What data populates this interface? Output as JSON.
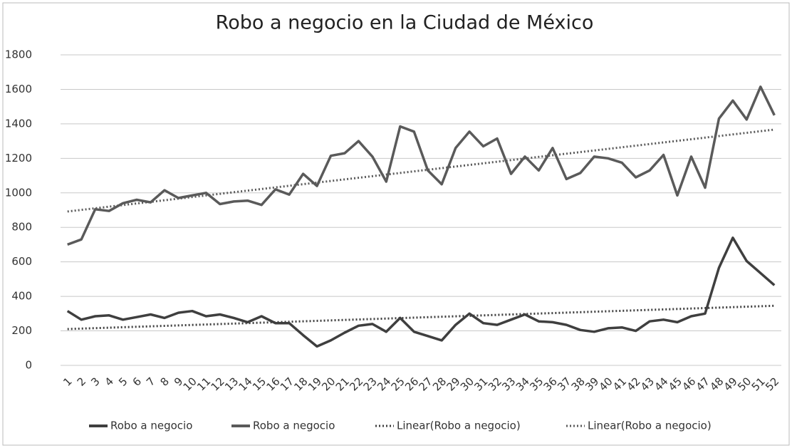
{
  "chart_data": {
    "type": "line",
    "title": "Robo a negocio en la Ciudad de México",
    "categories": [
      "1",
      "2",
      "3",
      "4",
      "5",
      "6",
      "7",
      "8",
      "9",
      "10",
      "11",
      "12",
      "13",
      "14",
      "15",
      "16",
      "17",
      "18",
      "19",
      "20",
      "21",
      "22",
      "23",
      "24",
      "25",
      "26",
      "27",
      "28",
      "29",
      "30",
      "31",
      "32",
      "33",
      "34",
      "35",
      "36",
      "37",
      "38",
      "39",
      "40",
      "41",
      "42",
      "43",
      "44",
      "45",
      "46",
      "47",
      "48",
      "49",
      "50",
      "51",
      "52"
    ],
    "series": [
      {
        "name": "Robo a negocio",
        "color": "#3f3f3f",
        "trendline": "Linear(Robo a negocio)",
        "values": [
          315,
          265,
          285,
          290,
          265,
          280,
          295,
          275,
          305,
          315,
          285,
          295,
          275,
          250,
          285,
          245,
          245,
          175,
          110,
          145,
          190,
          230,
          240,
          195,
          275,
          195,
          170,
          145,
          235,
          300,
          245,
          235,
          265,
          295,
          255,
          250,
          235,
          205,
          195,
          215,
          220,
          200,
          255,
          265,
          250,
          285,
          300,
          565,
          740,
          605,
          535,
          465
        ]
      },
      {
        "name": "Robo a negocio",
        "color": "#5a5a5a",
        "trendline": "Linear(Robo a negocio)",
        "values": [
          700,
          730,
          905,
          895,
          940,
          960,
          945,
          1015,
          970,
          985,
          1000,
          935,
          950,
          955,
          930,
          1020,
          990,
          1110,
          1040,
          1215,
          1230,
          1300,
          1210,
          1065,
          1385,
          1355,
          1130,
          1050,
          1260,
          1355,
          1270,
          1315,
          1110,
          1210,
          1130,
          1260,
          1080,
          1115,
          1210,
          1200,
          1175,
          1090,
          1130,
          1220,
          985,
          1210,
          1030,
          1430,
          1535,
          1425,
          1615,
          1450
        ]
      }
    ],
    "ylim": [
      0,
      1800
    ],
    "yticks": [
      0,
      200,
      400,
      600,
      800,
      1000,
      1200,
      1400,
      1600,
      1800
    ],
    "grid": true
  }
}
